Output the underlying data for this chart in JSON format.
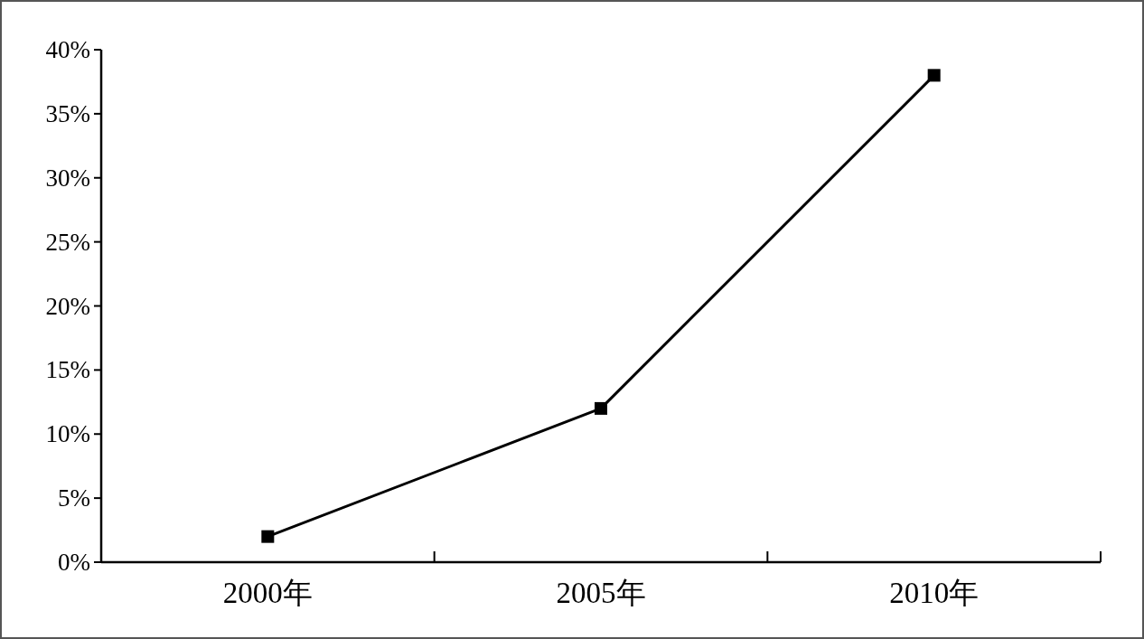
{
  "chart_data": {
    "type": "line",
    "categories": [
      "2000年",
      "2005年",
      "2010年"
    ],
    "series": [
      {
        "color": "#000000",
        "values": [
          2,
          12,
          38
        ]
      }
    ],
    "ylim": [
      0,
      40
    ],
    "yticks": [
      {
        "value": 0,
        "label": "0%"
      },
      {
        "value": 5,
        "label": "5%"
      },
      {
        "value": 10,
        "label": "10%"
      },
      {
        "value": 15,
        "label": "15%"
      },
      {
        "value": 20,
        "label": "20%"
      },
      {
        "value": 25,
        "label": "25%"
      },
      {
        "value": 30,
        "label": "30%"
      },
      {
        "value": 35,
        "label": "35%"
      },
      {
        "value": 40,
        "label": "40%"
      }
    ],
    "marker": "square",
    "line_style": "solid"
  }
}
